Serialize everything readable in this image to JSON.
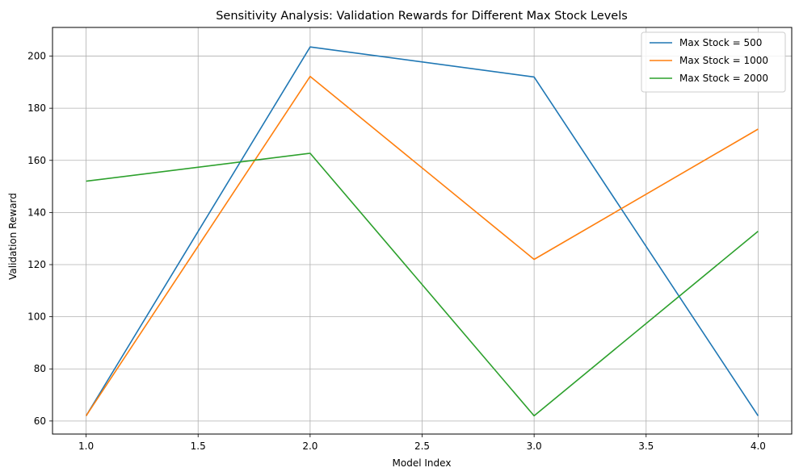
{
  "chart_data": {
    "type": "line",
    "title": "Sensitivity Analysis: Validation Rewards for Different Max Stock Levels",
    "xlabel": "Model Index",
    "ylabel": "Validation Reward",
    "x": [
      1,
      2,
      3,
      4
    ],
    "xlim": [
      0.85,
      4.15
    ],
    "ylim": [
      55,
      211
    ],
    "xticks": [
      "1.0",
      "1.5",
      "2.0",
      "2.5",
      "3.0",
      "3.5",
      "4.0"
    ],
    "xtick_values": [
      1.0,
      1.5,
      2.0,
      2.5,
      3.0,
      3.5,
      4.0
    ],
    "yticks": [
      "60",
      "80",
      "100",
      "120",
      "140",
      "160",
      "180",
      "200"
    ],
    "ytick_values": [
      60,
      80,
      100,
      120,
      140,
      160,
      180,
      200
    ],
    "grid": true,
    "legend_position": "top-right",
    "series": [
      {
        "name": "Max Stock = 500",
        "color": "#1f77b4",
        "values": [
          62.0,
          203.5,
          192.0,
          62.0
        ]
      },
      {
        "name": "Max Stock = 1000",
        "color": "#ff7f0e",
        "values": [
          62.0,
          192.2,
          122.0,
          172.0
        ]
      },
      {
        "name": "Max Stock = 2000",
        "color": "#2ca02c",
        "values": [
          152.0,
          162.7,
          62.0,
          132.8
        ]
      }
    ]
  }
}
